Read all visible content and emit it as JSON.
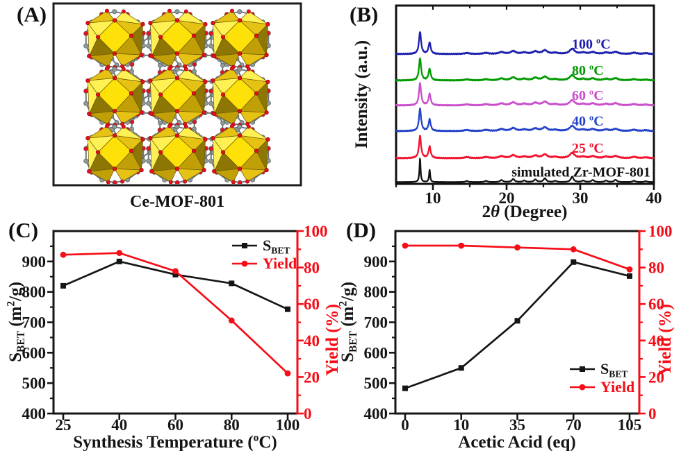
{
  "panels": {
    "a_letter": "(A)",
    "b_letter": "(B)",
    "c_letter": "(C)",
    "d_letter": "(D)",
    "a_caption": "Ce-MOF-801"
  },
  "structure": {
    "colors": {
      "poly_bright": "#ffe10a",
      "poly_light": "#fff054",
      "poly_mid": "#e6c214",
      "poly_deep": "#c19f06",
      "poly_dark": "#8d7603",
      "oxygen": "#e8101e",
      "carbon": "#919a9a",
      "bond": "#6e7777",
      "frame": "#1c1c1c"
    }
  },
  "chart_data": [
    {
      "id": "B",
      "type": "line",
      "title": "",
      "xlabel": "2θ (Degree)",
      "xlabel_parts": [
        [
          "2"
        ],
        [
          "θ",
          "italic"
        ],
        [
          " (Degree)"
        ]
      ],
      "ylabel": "Intensity (a.u.)",
      "xlim": [
        5,
        40
      ],
      "xticks": [
        10,
        20,
        30,
        40
      ],
      "xminorticks": [
        5,
        15,
        25,
        35
      ],
      "grid": false,
      "legend_position": "inline-right-labels",
      "peaks_2theta": [
        [
          8.25,
          1.0
        ],
        [
          9.55,
          0.52
        ],
        [
          14.6,
          0.045
        ],
        [
          17.2,
          0.05
        ],
        [
          19.3,
          0.085
        ],
        [
          20.9,
          0.13
        ],
        [
          22.4,
          0.065
        ],
        [
          23.9,
          0.11
        ],
        [
          25.2,
          0.16
        ],
        [
          26.6,
          0.05
        ],
        [
          28.9,
          0.23
        ],
        [
          30.4,
          0.06
        ],
        [
          31.7,
          0.085
        ],
        [
          33.5,
          0.065
        ],
        [
          34.8,
          0.095
        ],
        [
          37.3,
          0.055
        ],
        [
          38.9,
          0.035
        ]
      ],
      "series": [
        {
          "name": "100 °C",
          "name_parts": [
            [
              "100 "
            ],
            [
              "o",
              "sup"
            ],
            [
              "C"
            ]
          ],
          "color": "#1f1fae",
          "offset_frac": 0.272,
          "peak_hwhm": 0.17,
          "amp": 32,
          "label_anchor": "start"
        },
        {
          "name": "80 °C",
          "name_parts": [
            [
              "80 "
            ],
            [
              "o",
              "sup"
            ],
            [
              "C"
            ]
          ],
          "color": "#019a01",
          "offset_frac": 0.42,
          "peak_hwhm": 0.17,
          "amp": 32,
          "label_anchor": "start"
        },
        {
          "name": "60 °C",
          "name_parts": [
            [
              "60 "
            ],
            [
              "o",
              "sup"
            ],
            [
              "C"
            ]
          ],
          "color": "#c94fcb",
          "offset_frac": 0.56,
          "peak_hwhm": 0.17,
          "amp": 32,
          "label_anchor": "start"
        },
        {
          "name": "40 °C",
          "name_parts": [
            [
              "40 "
            ],
            [
              "o",
              "sup"
            ],
            [
              "C"
            ]
          ],
          "color": "#2543c8",
          "offset_frac": 0.704,
          "peak_hwhm": 0.17,
          "amp": 32,
          "label_anchor": "start"
        },
        {
          "name": "25 °C",
          "name_parts": [
            [
              "25 "
            ],
            [
              "o",
              "sup"
            ],
            [
              "C"
            ]
          ],
          "color": "#f2132f",
          "offset_frac": 0.856,
          "peak_hwhm": 0.17,
          "amp": 32,
          "label_anchor": "start"
        },
        {
          "name": "simulated Zr-MOF-801",
          "name_parts": [
            [
              "simulated Zr-MOF-801"
            ]
          ],
          "color": "#121212",
          "offset_frac": 0.99,
          "peak_hwhm": 0.09,
          "amp": 34,
          "label_anchor": "end"
        }
      ]
    },
    {
      "id": "C",
      "type": "line",
      "title": "",
      "categories": [
        25,
        40,
        60,
        80,
        100
      ],
      "xlabel": "Synthesis Temperature (°C)",
      "xlabel_parts": [
        [
          "Synthesis Temperature ("
        ],
        [
          "o",
          "sup"
        ],
        [
          "C)"
        ]
      ],
      "ylabel_left": "S_BET (m2/g)",
      "ylabel_left_parts": [
        [
          "S"
        ],
        [
          "BET",
          "sub"
        ],
        [
          " (m"
        ],
        [
          "2",
          "sup"
        ],
        [
          "/g)"
        ]
      ],
      "ylabel_right": "Yield (%)",
      "ylabel_right_parts": [
        [
          "Yield (%)"
        ]
      ],
      "ylim_left": [
        400,
        1000
      ],
      "yticks_left": [
        400,
        500,
        600,
        700,
        800,
        900
      ],
      "ylim_right": [
        0,
        100
      ],
      "yticks_right": [
        0,
        20,
        40,
        60,
        80,
        100
      ],
      "left_color": "#151515",
      "right_color": "#f50d17",
      "grid": false,
      "legend_position": "top-right",
      "series": [
        {
          "name": "S_BET",
          "name_parts": [
            [
              "S"
            ],
            [
              "BET",
              "sub"
            ]
          ],
          "axis": "left",
          "color": "#151515",
          "marker": "square",
          "values": [
            820,
            900,
            857,
            828,
            743
          ]
        },
        {
          "name": "Yield",
          "name_parts": [
            [
              "Yield"
            ]
          ],
          "axis": "right",
          "color": "#f50d17",
          "marker": "circle",
          "values": [
            87,
            88,
            78,
            51,
            22
          ]
        }
      ]
    },
    {
      "id": "D",
      "type": "line",
      "title": "",
      "categories": [
        0,
        10,
        35,
        70,
        105
      ],
      "xlabel": "Acetic Acid (eq)",
      "xlabel_parts": [
        [
          "Acetic Acid (eq)"
        ]
      ],
      "ylabel_left": "S_BET (m2/g)",
      "ylabel_left_parts": [
        [
          "S"
        ],
        [
          "BET",
          "sub"
        ],
        [
          " (m"
        ],
        [
          "2",
          "sup"
        ],
        [
          "/g)"
        ]
      ],
      "ylabel_right": "Yield (%)",
      "ylabel_right_parts": [
        [
          "Yield (%)"
        ]
      ],
      "ylim_left": [
        400,
        1000
      ],
      "yticks_left": [
        400,
        500,
        600,
        700,
        800,
        900
      ],
      "ylim_right": [
        0,
        100
      ],
      "yticks_right": [
        0,
        20,
        40,
        60,
        80,
        100
      ],
      "left_color": "#151515",
      "right_color": "#f50d17",
      "grid": false,
      "legend_position": "bottom-right",
      "series": [
        {
          "name": "S_BET",
          "name_parts": [
            [
              "S"
            ],
            [
              "BET",
              "sub"
            ]
          ],
          "axis": "left",
          "color": "#151515",
          "marker": "square",
          "values": [
            483,
            550,
            705,
            898,
            852
          ]
        },
        {
          "name": "Yield",
          "name_parts": [
            [
              "Yield"
            ]
          ],
          "axis": "right",
          "color": "#f50d17",
          "marker": "circle",
          "values": [
            92,
            92,
            91,
            90,
            79
          ]
        }
      ]
    }
  ]
}
